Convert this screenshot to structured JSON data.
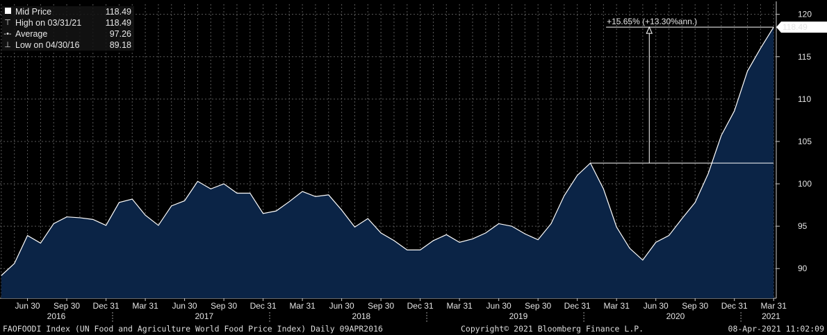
{
  "legend": {
    "items": [
      {
        "label": "Mid Price",
        "value": "118.49",
        "marker": "square"
      },
      {
        "label": "High on 03/31/21",
        "value": "118.49",
        "marker": "high-tick"
      },
      {
        "label": "Average",
        "value": "97.26",
        "marker": "dash-dot"
      },
      {
        "label": "Low on 04/30/16",
        "value": "89.18",
        "marker": "low-tick"
      }
    ]
  },
  "footer": {
    "left": "FAOFOODI Index (UN Food and Agriculture World Food Price Index)  Daily 09APR2016",
    "center": "Copyright© 2021 Bloomberg Finance L.P.",
    "right": "08-Apr-2021 11:02:09"
  },
  "annotation": {
    "text": "+15.65% (+13.30%ann.)",
    "from_value": 102.45,
    "to_value": 118.49
  },
  "last_price_label": "118.49",
  "colors": {
    "background": "#000000",
    "area_fill": "#0b2446",
    "line": "#ffffff",
    "grid": "#5a5a5a",
    "text": "#e4e4e4"
  },
  "chart_data": {
    "type": "area",
    "title": "",
    "x_format": "month-index, 0 = 2016-04",
    "x": [
      0,
      1,
      2,
      3,
      4,
      5,
      6,
      7,
      8,
      9,
      10,
      11,
      12,
      13,
      14,
      15,
      16,
      17,
      18,
      19,
      20,
      21,
      22,
      23,
      24,
      25,
      26,
      27,
      28,
      29,
      30,
      31,
      32,
      33,
      34,
      35,
      36,
      37,
      38,
      39,
      40,
      41,
      42,
      43,
      44,
      45,
      46,
      47,
      48,
      49,
      50,
      51,
      52,
      53,
      54,
      55,
      56,
      57,
      58,
      59
    ],
    "y": [
      89.18,
      90.6,
      93.9,
      93.0,
      95.3,
      96.1,
      96.0,
      95.8,
      95.1,
      97.8,
      98.2,
      96.3,
      95.1,
      97.4,
      98.0,
      100.3,
      99.4,
      100.0,
      98.9,
      98.9,
      96.5,
      96.8,
      97.9,
      99.1,
      98.5,
      98.7,
      96.9,
      94.9,
      95.9,
      94.2,
      93.3,
      92.2,
      92.2,
      93.3,
      94.0,
      93.1,
      93.5,
      94.2,
      95.3,
      95.0,
      94.1,
      93.4,
      95.3,
      98.6,
      101.0,
      102.45,
      99.4,
      94.9,
      92.4,
      91.0,
      93.1,
      93.9,
      95.9,
      97.8,
      101.2,
      105.7,
      108.6,
      113.3,
      116.0,
      118.49
    ],
    "ylim": [
      86.5,
      121.2
    ],
    "yticks": [
      90,
      95,
      100,
      105,
      110,
      115,
      120
    ],
    "xticks": [
      {
        "x": 2,
        "label": "Jun 30"
      },
      {
        "x": 5,
        "label": "Sep 30"
      },
      {
        "x": 8,
        "label": "Dec 31"
      },
      {
        "x": 11,
        "label": "Mar 31"
      },
      {
        "x": 14,
        "label": "Jun 30"
      },
      {
        "x": 17,
        "label": "Sep 30"
      },
      {
        "x": 20,
        "label": "Dec 31"
      },
      {
        "x": 23,
        "label": "Mar 31"
      },
      {
        "x": 26,
        "label": "Jun 30"
      },
      {
        "x": 29,
        "label": "Sep 30"
      },
      {
        "x": 32,
        "label": "Dec 31"
      },
      {
        "x": 35,
        "label": "Mar 31"
      },
      {
        "x": 38,
        "label": "Jun 30"
      },
      {
        "x": 41,
        "label": "Sep 30"
      },
      {
        "x": 44,
        "label": "Dec 31"
      },
      {
        "x": 47,
        "label": "Mar 31"
      },
      {
        "x": 50,
        "label": "Jun 30"
      },
      {
        "x": 53,
        "label": "Sep 30"
      },
      {
        "x": 56,
        "label": "Dec 31"
      },
      {
        "x": 59,
        "label": "Mar 31"
      }
    ],
    "year_labels": [
      {
        "x": 4.2,
        "label": "2016"
      },
      {
        "x": 15.5,
        "label": "2017"
      },
      {
        "x": 27.5,
        "label": "2018"
      },
      {
        "x": 39.5,
        "label": "2019"
      },
      {
        "x": 51.5,
        "label": "2020"
      },
      {
        "x": 58.8,
        "label": "2021"
      }
    ],
    "year_dividers": [
      8.5,
      20.5,
      32.5,
      44.5,
      56.5
    ],
    "grid": true
  }
}
